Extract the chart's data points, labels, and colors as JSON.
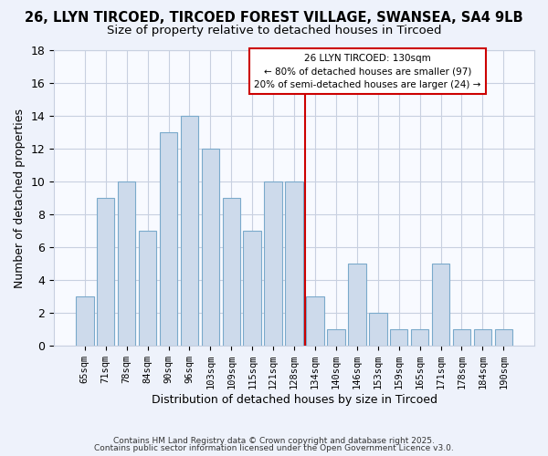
{
  "title": "26, LLYN TIRCOED, TIRCOED FOREST VILLAGE, SWANSEA, SA4 9LB",
  "subtitle": "Size of property relative to detached houses in Tircoed",
  "xlabel": "Distribution of detached houses by size in Tircoed",
  "ylabel": "Number of detached properties",
  "bar_labels": [
    "65sqm",
    "71sqm",
    "78sqm",
    "84sqm",
    "90sqm",
    "96sqm",
    "103sqm",
    "109sqm",
    "115sqm",
    "121sqm",
    "128sqm",
    "134sqm",
    "140sqm",
    "146sqm",
    "153sqm",
    "159sqm",
    "165sqm",
    "171sqm",
    "178sqm",
    "184sqm",
    "190sqm"
  ],
  "bar_values": [
    3,
    9,
    10,
    7,
    13,
    14,
    12,
    9,
    7,
    10,
    10,
    3,
    1,
    5,
    2,
    1,
    1,
    5,
    1,
    1,
    1
  ],
  "bar_color": "#cddaeb",
  "bar_edge_color": "#7aaacb",
  "vline_x_index": 10,
  "vline_color": "#cc0000",
  "annotation_title": "26 LLYN TIRCOED: 130sqm",
  "annotation_line1": "← 80% of detached houses are smaller (97)",
  "annotation_line2": "20% of semi-detached houses are larger (24) →",
  "annotation_box_color": "#ffffff",
  "annotation_box_edge": "#cc0000",
  "ylim": [
    0,
    18
  ],
  "yticks": [
    0,
    2,
    4,
    6,
    8,
    10,
    12,
    14,
    16,
    18
  ],
  "footer1": "Contains HM Land Registry data © Crown copyright and database right 2025.",
  "footer2": "Contains public sector information licensed under the Open Government Licence v3.0.",
  "bg_color": "#eef2fb",
  "plot_bg_color": "#f8faff",
  "grid_color": "#c8d0e0",
  "title_fontsize": 10.5,
  "subtitle_fontsize": 9.5
}
